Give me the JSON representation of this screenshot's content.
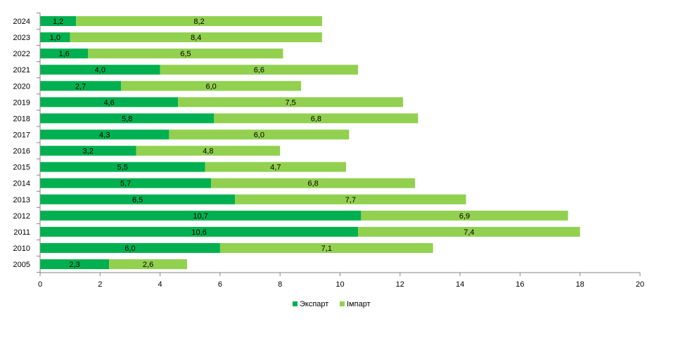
{
  "chart_data": {
    "type": "bar",
    "orientation": "horizontal",
    "stacked": true,
    "categories": [
      "2024",
      "2023",
      "2022",
      "2021",
      "2020",
      "2019",
      "2018",
      "2017",
      "2016",
      "2015",
      "2014",
      "2013",
      "2012",
      "2011",
      "2010",
      "2005"
    ],
    "series": [
      {
        "name": "Экспарт",
        "color": "#00B050",
        "values": [
          1.2,
          1.0,
          1.6,
          4.0,
          2.7,
          4.6,
          5.8,
          4.3,
          3.2,
          5.5,
          5.7,
          6.5,
          10.7,
          10.6,
          6.0,
          2.3
        ],
        "labels": [
          "1,2",
          "1,0",
          "1,6",
          "4,0",
          "2,7",
          "4,6",
          "5,8",
          "4,3",
          "3,2",
          "5,5",
          "5,7",
          "6,5",
          "10,7",
          "10,6",
          "6,0",
          "2,3"
        ]
      },
      {
        "name": "Імпарт",
        "color": "#92D050",
        "values": [
          8.2,
          8.4,
          6.5,
          6.6,
          6.0,
          7.5,
          6.8,
          6.0,
          4.8,
          4.7,
          6.8,
          7.7,
          6.9,
          7.4,
          7.1,
          2.6
        ],
        "labels": [
          "8,2",
          "8,4",
          "6,5",
          "6,6",
          "6,0",
          "7,5",
          "6,8",
          "6,0",
          "4,8",
          "4,7",
          "6,8",
          "7,7",
          "6,9",
          "7,4",
          "7,1",
          "2,6"
        ]
      }
    ],
    "xlim": [
      0,
      20
    ],
    "x_ticks": [
      0,
      2,
      4,
      6,
      8,
      10,
      12,
      14,
      16,
      18,
      20
    ],
    "x_tick_labels": [
      "0",
      "2",
      "4",
      "6",
      "8",
      "10",
      "12",
      "14",
      "16",
      "18",
      "20"
    ],
    "title": "",
    "xlabel": "",
    "ylabel": "",
    "grid": false,
    "legend": "bottom-center",
    "axis_color": "#868686"
  }
}
